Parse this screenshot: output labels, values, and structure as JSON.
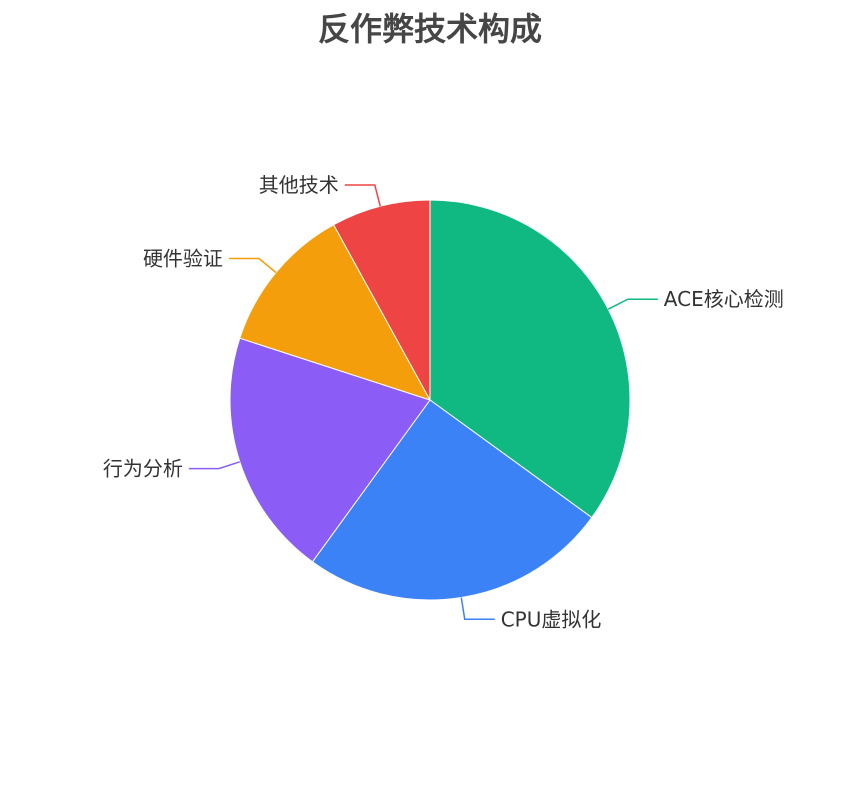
{
  "chart_data": {
    "type": "pie",
    "title": "反作弊技术构成",
    "slices": [
      {
        "name": "ACE核心检测",
        "value": 35,
        "color": "#10b981"
      },
      {
        "name": "CPU虚拟化",
        "value": 25,
        "color": "#3b82f6"
      },
      {
        "name": "行为分析",
        "value": 20,
        "color": "#8b5cf6"
      },
      {
        "name": "硬件验证",
        "value": 12,
        "color": "#f59e0b"
      },
      {
        "name": "其他技术",
        "value": 8,
        "color": "#ef4444"
      }
    ]
  }
}
